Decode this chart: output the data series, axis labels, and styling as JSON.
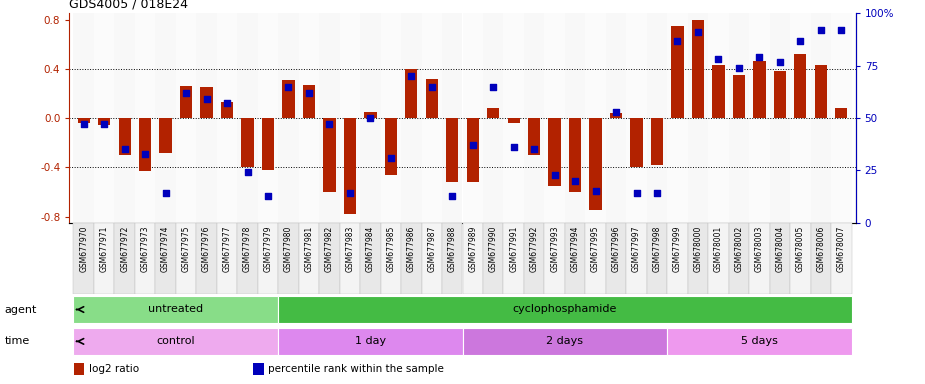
{
  "title": "GDS4005 / 018E24",
  "samples": [
    "GSM677970",
    "GSM677971",
    "GSM677972",
    "GSM677973",
    "GSM677974",
    "GSM677975",
    "GSM677976",
    "GSM677977",
    "GSM677978",
    "GSM677979",
    "GSM677980",
    "GSM677981",
    "GSM677982",
    "GSM677983",
    "GSM677984",
    "GSM677985",
    "GSM677986",
    "GSM677987",
    "GSM677988",
    "GSM677989",
    "GSM677990",
    "GSM677991",
    "GSM677992",
    "GSM677993",
    "GSM677994",
    "GSM677995",
    "GSM677996",
    "GSM677997",
    "GSM677998",
    "GSM677999",
    "GSM678000",
    "GSM678001",
    "GSM678002",
    "GSM678003",
    "GSM678004",
    "GSM678005",
    "GSM678006",
    "GSM678007"
  ],
  "log2_ratio": [
    -0.04,
    -0.06,
    -0.3,
    -0.43,
    -0.28,
    0.26,
    0.25,
    0.13,
    -0.4,
    -0.42,
    0.31,
    0.27,
    -0.6,
    -0.78,
    0.05,
    -0.46,
    0.4,
    0.32,
    -0.52,
    -0.52,
    0.08,
    -0.04,
    -0.3,
    -0.55,
    -0.6,
    -0.75,
    0.04,
    -0.4,
    -0.38,
    0.75,
    0.8,
    0.43,
    0.35,
    0.46,
    0.38,
    0.52,
    0.43,
    0.08
  ],
  "percentile_rank": [
    47,
    47,
    35,
    33,
    14,
    62,
    59,
    57,
    24,
    13,
    65,
    62,
    47,
    14,
    50,
    31,
    70,
    65,
    13,
    37,
    65,
    36,
    35,
    23,
    20,
    15,
    53,
    14,
    14,
    87,
    91,
    78,
    74,
    79,
    77,
    87,
    92,
    92
  ],
  "bar_color": "#b22200",
  "dot_color": "#0000bb",
  "ylim_left": [
    -0.85,
    0.85
  ],
  "ylim_right": [
    0,
    100
  ],
  "yticks_left": [
    -0.8,
    -0.4,
    0.0,
    0.4,
    0.8
  ],
  "yticks_right": [
    0,
    25,
    50,
    75,
    100
  ],
  "dotted_lines": [
    -0.4,
    0.0,
    0.4
  ],
  "agent_groups": [
    {
      "label": "untreated",
      "start": 0,
      "end": 10,
      "color": "#88dd88"
    },
    {
      "label": "cyclophosphamide",
      "start": 10,
      "end": 38,
      "color": "#44bb44"
    }
  ],
  "time_groups": [
    {
      "label": "control",
      "start": 0,
      "end": 10,
      "color": "#eeaaee"
    },
    {
      "label": "1 day",
      "start": 10,
      "end": 19,
      "color": "#dd88ee"
    },
    {
      "label": "2 days",
      "start": 19,
      "end": 29,
      "color": "#cc77dd"
    },
    {
      "label": "5 days",
      "start": 29,
      "end": 38,
      "color": "#ee99ee"
    }
  ],
  "legend_items": [
    {
      "label": "log2 ratio",
      "color": "#b22200"
    },
    {
      "label": "percentile rank within the sample",
      "color": "#0000bb"
    }
  ],
  "bg_color": "#f0f0f0"
}
